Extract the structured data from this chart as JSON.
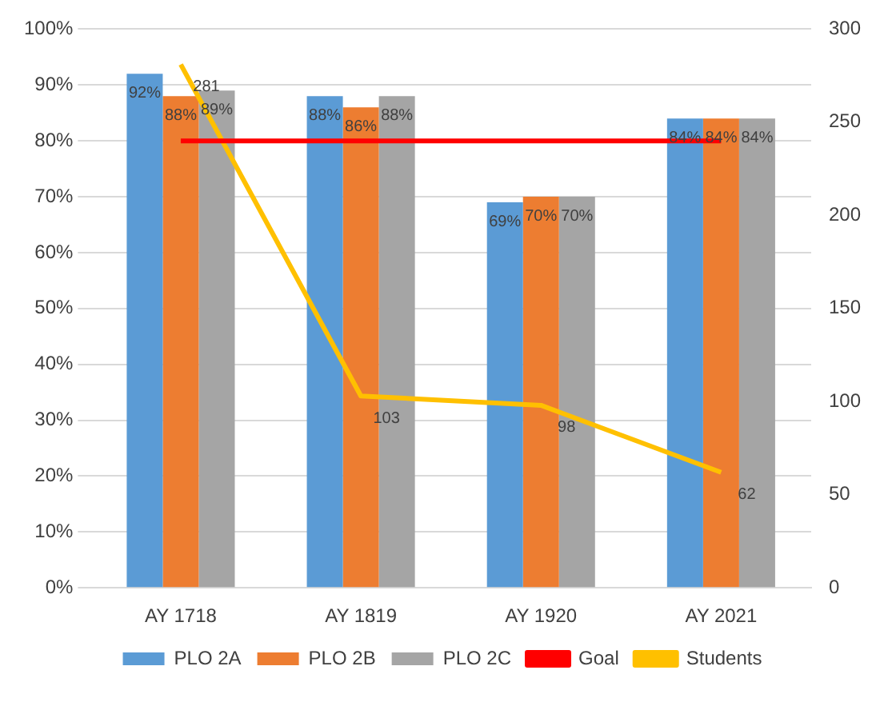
{
  "chart_data": {
    "type": "bar",
    "categories": [
      "AY 1718",
      "AY 1819",
      "AY 1920",
      "AY 2021"
    ],
    "series": [
      {
        "name": "PLO 2A",
        "color": "#5b9bd5",
        "values": [
          92,
          88,
          69,
          84
        ],
        "value_labels": [
          "92%",
          "88%",
          "69%",
          "84%"
        ]
      },
      {
        "name": "PLO 2B",
        "color": "#ed7d31",
        "values": [
          88,
          86,
          70,
          84
        ],
        "value_labels": [
          "88%",
          "86%",
          "70%",
          "84%"
        ]
      },
      {
        "name": "PLO 2C",
        "color": "#a5a5a5",
        "values": [
          89,
          88,
          70,
          84
        ],
        "value_labels": [
          "89%",
          "88%",
          "70%",
          "84%"
        ]
      },
      {
        "name": "Goal",
        "type": "line",
        "color": "#ff0000",
        "values": [
          80,
          80,
          80,
          80
        ]
      },
      {
        "name": "Students",
        "type": "line",
        "axis": "y2",
        "color": "#ffc000",
        "values": [
          281,
          103,
          98,
          62
        ],
        "value_labels": [
          "281",
          "103",
          "98",
          "62"
        ]
      }
    ],
    "ylim": [
      0,
      100
    ],
    "yticks": [
      {
        "value": 0,
        "label": "0%"
      },
      {
        "value": 10,
        "label": "10%"
      },
      {
        "value": 20,
        "label": "20%"
      },
      {
        "value": 30,
        "label": "30%"
      },
      {
        "value": 40,
        "label": "40%"
      },
      {
        "value": 50,
        "label": "50%"
      },
      {
        "value": 60,
        "label": "60%"
      },
      {
        "value": 70,
        "label": "70%"
      },
      {
        "value": 80,
        "label": "80%"
      },
      {
        "value": 90,
        "label": "90%"
      },
      {
        "value": 100,
        "label": "100%"
      }
    ],
    "y2lim": [
      0,
      300
    ],
    "y2ticks": [
      0,
      50,
      100,
      150,
      200,
      250,
      300
    ],
    "grid": "y",
    "legend": "bottom",
    "marker": "none"
  }
}
